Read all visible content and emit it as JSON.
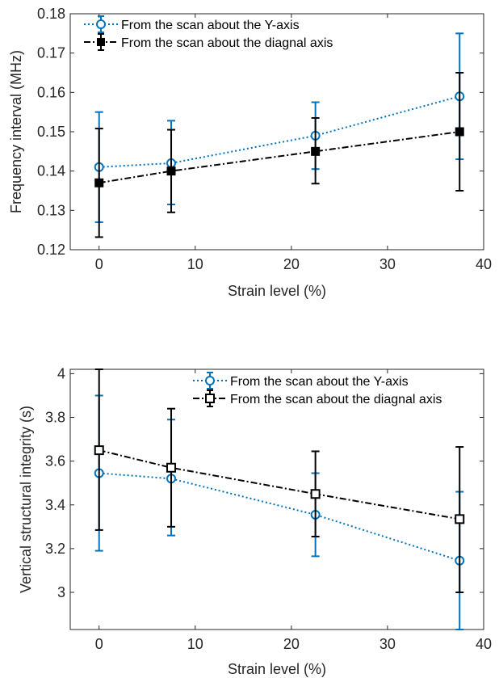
{
  "chart_data": [
    {
      "type": "line",
      "title": "",
      "xlabel": "Strain level (%)",
      "ylabel": "Frequency interval (MHz)",
      "xlim": [
        -3,
        40
      ],
      "ylim": [
        0.12,
        0.18
      ],
      "xticks": [
        "0",
        "10",
        "20",
        "30",
        "40"
      ],
      "xtick_values": [
        0,
        10,
        20,
        30,
        40
      ],
      "yticks": [
        "0.12",
        "0.13",
        "0.14",
        "0.15",
        "0.16",
        "0.17",
        "0.18"
      ],
      "ytick_values": [
        0.12,
        0.13,
        0.14,
        0.15,
        0.16,
        0.17,
        0.18
      ],
      "grid": false,
      "legend_position": "top-left",
      "x": [
        0,
        7.5,
        22.5,
        37.5
      ],
      "series": [
        {
          "name": "From the scan about the Y-axis",
          "color": "#0072BD",
          "marker": "circle",
          "line_style": "dotted",
          "values": [
            0.141,
            0.142,
            0.149,
            0.159
          ],
          "err_low": [
            0.127,
            0.1315,
            0.1405,
            0.143
          ],
          "err_high": [
            0.155,
            0.1528,
            0.1575,
            0.175
          ]
        },
        {
          "name": "From the scan about the diagnal axis",
          "color": "#000000",
          "marker": "square-filled",
          "line_style": "dash-dot",
          "values": [
            0.137,
            0.14,
            0.145,
            0.15
          ],
          "err_low": [
            0.1232,
            0.1295,
            0.1368,
            0.135
          ],
          "err_high": [
            0.1508,
            0.1505,
            0.1535,
            0.165
          ]
        }
      ]
    },
    {
      "type": "line",
      "title": "",
      "xlabel": "Strain level (%)",
      "ylabel": "Vertical structural integrity (s)",
      "xlim": [
        -3,
        40
      ],
      "ylim": [
        2.83,
        4.02
      ],
      "xticks": [
        "0",
        "10",
        "20",
        "30",
        "40"
      ],
      "xtick_values": [
        0,
        10,
        20,
        30,
        40
      ],
      "yticks": [
        "3",
        "3.2",
        "3.4",
        "3.6",
        "3.8",
        "4"
      ],
      "ytick_values": [
        3.0,
        3.2,
        3.4,
        3.6,
        3.8,
        4.0
      ],
      "grid": false,
      "legend_position": "top-right",
      "x": [
        0,
        7.5,
        22.5,
        37.5
      ],
      "series": [
        {
          "name": "From the scan about the Y-axis",
          "color": "#0072BD",
          "marker": "circle",
          "line_style": "dotted",
          "values": [
            3.545,
            3.52,
            3.355,
            3.145
          ],
          "err_low": [
            3.19,
            3.26,
            3.165,
            2.83
          ],
          "err_high": [
            3.9,
            3.79,
            3.545,
            3.46
          ]
        },
        {
          "name": "From the scan about the diagnal axis",
          "color": "#000000",
          "marker": "square-open",
          "line_style": "dash-dot",
          "values": [
            3.65,
            3.57,
            3.45,
            3.335
          ],
          "err_low": [
            3.285,
            3.3,
            3.255,
            3.0
          ],
          "err_high": [
            4.02,
            3.84,
            3.645,
            3.665
          ]
        }
      ]
    }
  ]
}
